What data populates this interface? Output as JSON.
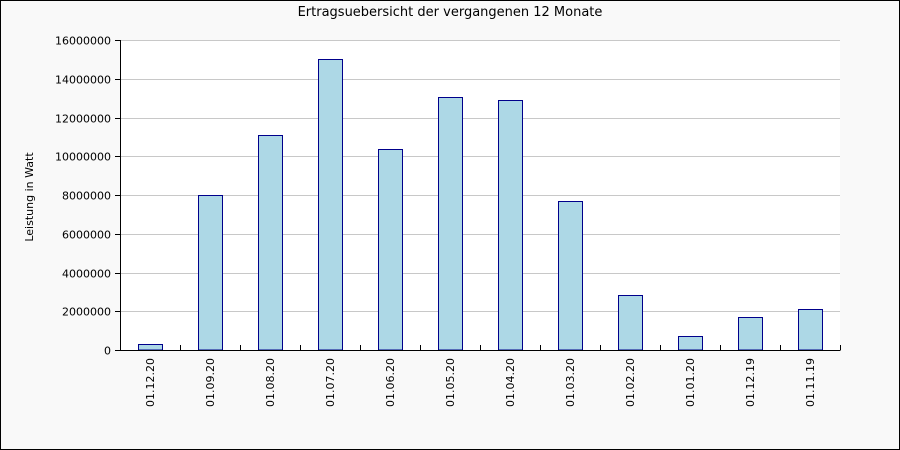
{
  "chart_data": {
    "type": "bar",
    "title": "Ertragsuebersicht der vergangenen 12 Monate",
    "xlabel": "",
    "ylabel": "Leistung in Watt",
    "categories": [
      "01.12.20",
      "01.09.20",
      "01.08.20",
      "01.07.20",
      "01.06.20",
      "01.05.20",
      "01.04.20",
      "01.03.20",
      "01.02.20",
      "01.01.20",
      "01.12.19",
      "01.11.19"
    ],
    "values": [
      300000,
      8000000,
      11100000,
      15000000,
      10350000,
      13050000,
      12900000,
      7700000,
      2850000,
      700000,
      1700000,
      2100000
    ],
    "ylim": [
      0,
      16000000
    ],
    "yticks": [
      0,
      2000000,
      4000000,
      6000000,
      8000000,
      10000000,
      12000000,
      14000000,
      16000000
    ],
    "ytick_labels": [
      "0",
      "2000000",
      "4000000",
      "6000000",
      "8000000",
      "10000000",
      "12000000",
      "14000000",
      "16000000"
    ],
    "grid": true,
    "colors": {
      "bar_fill": "#add8e6",
      "bar_stroke": "#00008b",
      "grid": "#c8c8c8",
      "plot_bg": "#ffffff",
      "page_bg": "#f9f9f9"
    }
  }
}
